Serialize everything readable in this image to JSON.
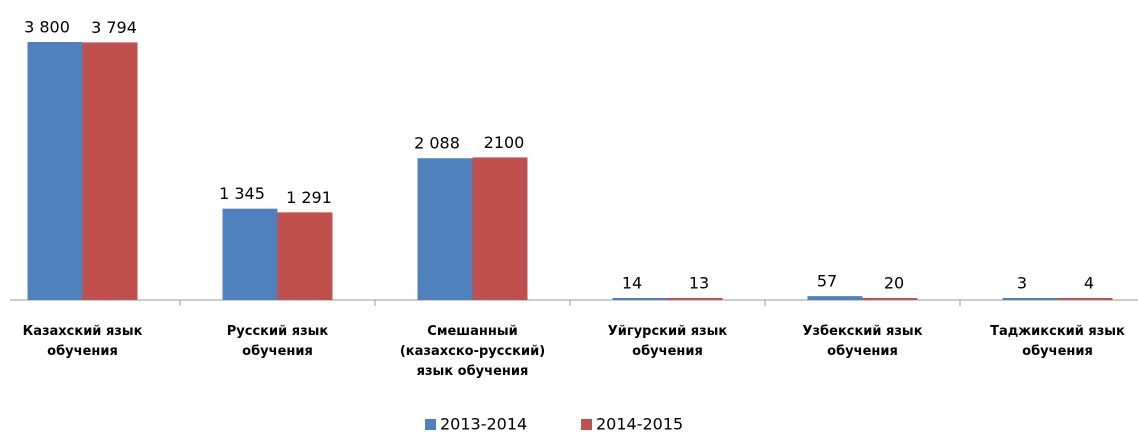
{
  "chart_data": {
    "type": "bar",
    "categories": [
      "Казахский язык\nобучения",
      "Русский язык\nобучения",
      "Смешанный\n(казахско-русский)\nязык обучения",
      "Уйгурский язык\nобучения",
      "Узбекский язык\nобучения",
      "Таджикский язык\nобучения"
    ],
    "series": [
      {
        "name": "2013-2014",
        "color": "#4f81bd",
        "values": [
          3800,
          1345,
          2088,
          14,
          57,
          3
        ],
        "value_labels": [
          "3 800",
          "1 345",
          "2 088",
          "14",
          "57",
          "3"
        ]
      },
      {
        "name": "2014-2015",
        "color": "#c0504d",
        "values": [
          3794,
          1291,
          2100,
          13,
          20,
          4
        ],
        "value_labels": [
          "3 794",
          "1 291",
          "2100",
          "13",
          "20",
          "4"
        ]
      }
    ],
    "legend": "bottom"
  }
}
